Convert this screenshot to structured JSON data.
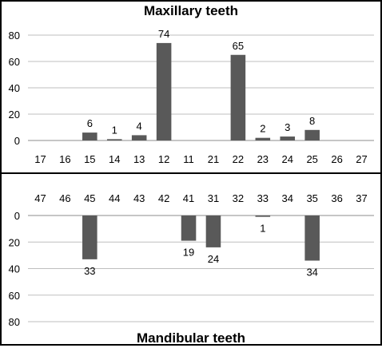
{
  "chart_data": [
    {
      "type": "bar",
      "title": "Maxillary teeth",
      "categories": [
        "17",
        "16",
        "15",
        "14",
        "13",
        "12",
        "11",
        "21",
        "22",
        "23",
        "24",
        "25",
        "26",
        "27"
      ],
      "values": [
        0,
        0,
        6,
        1,
        4,
        74,
        0,
        0,
        65,
        2,
        3,
        8,
        0,
        0
      ],
      "data_labels": [
        "",
        "",
        "6",
        "1",
        "4",
        "74",
        "",
        "",
        "65",
        "2",
        "3",
        "8",
        "",
        ""
      ],
      "ylim": [
        0,
        80
      ],
      "yticks": [
        "0",
        "20",
        "40",
        "60",
        "80"
      ],
      "grid": true,
      "bar_color": "#595959",
      "grid_color": "#bfbfbf"
    },
    {
      "type": "bar",
      "title": "Mandibular teeth",
      "categories": [
        "47",
        "46",
        "45",
        "44",
        "43",
        "42",
        "41",
        "31",
        "32",
        "33",
        "34",
        "35",
        "36",
        "37"
      ],
      "values": [
        0,
        0,
        33,
        0,
        0,
        0,
        19,
        24,
        0,
        1,
        0,
        34,
        0,
        0
      ],
      "data_labels": [
        "",
        "",
        "33",
        "",
        "",
        "",
        "19",
        "24",
        "",
        "1",
        "",
        "34",
        "",
        ""
      ],
      "ylim": [
        0,
        80
      ],
      "inverted": true,
      "yticks": [
        "0",
        "20",
        "40",
        "60",
        "80"
      ],
      "grid": true,
      "bar_color": "#595959",
      "grid_color": "#bfbfbf"
    }
  ]
}
